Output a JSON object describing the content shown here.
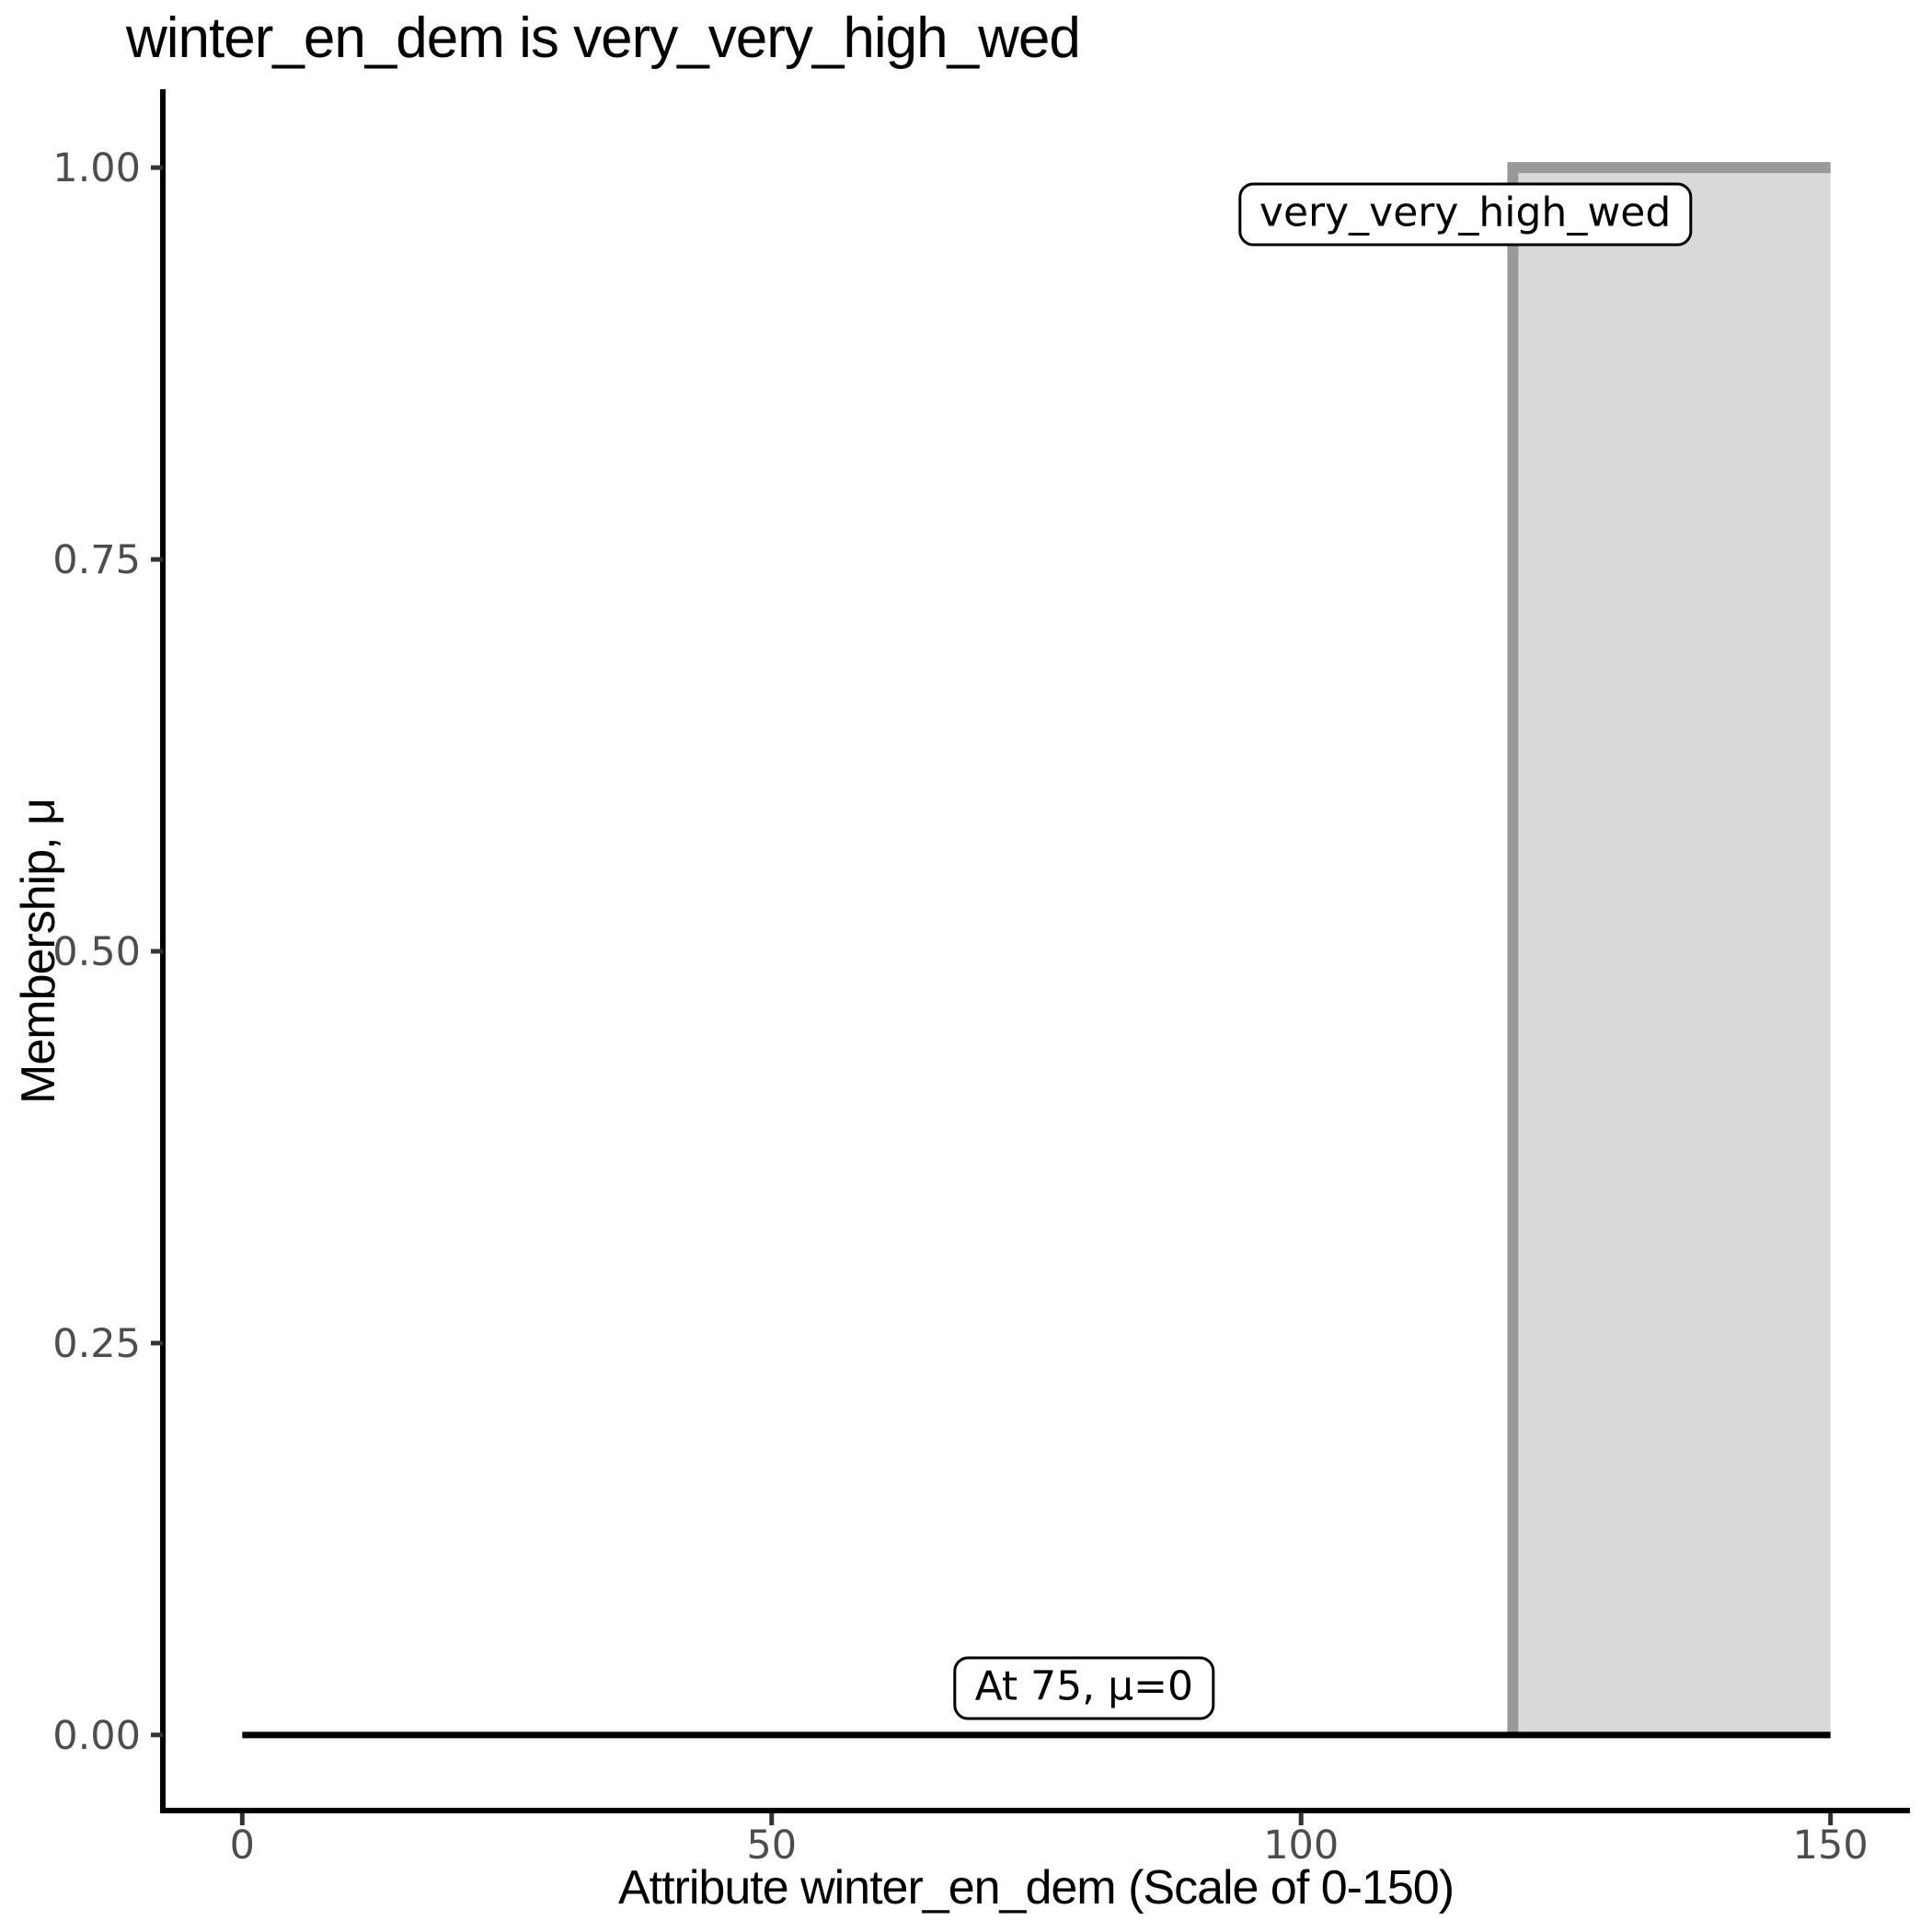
{
  "chart_data": {
    "type": "area",
    "title": "winter_en_dem is very_very_high_wed",
    "xlabel": "Attribute winter_en_dem (Scale of 0-150)",
    "ylabel": "Membership, μ",
    "xlim": [
      0,
      150
    ],
    "ylim": [
      0,
      1
    ],
    "grid": false,
    "legend": "none",
    "x_ticks": [
      {
        "v": 0,
        "label": "0"
      },
      {
        "v": 50,
        "label": "50"
      },
      {
        "v": 100,
        "label": "100"
      },
      {
        "v": 150,
        "label": "150"
      }
    ],
    "y_ticks": [
      {
        "v": 0,
        "label": "0.00"
      },
      {
        "v": 0.25,
        "label": "0.25"
      },
      {
        "v": 0.5,
        "label": "0.50"
      },
      {
        "v": 0.75,
        "label": "0.75"
      },
      {
        "v": 1,
        "label": "1.00"
      }
    ],
    "series": [
      {
        "name": "very_very_high_wed",
        "type": "area",
        "description": "crisp rectangular fuzzy set: mu=1 for 120<=x<=150, mu=0 elsewhere",
        "outline_points": [
          [
            120,
            0
          ],
          [
            120,
            1
          ],
          [
            150,
            1
          ]
        ],
        "fill_polygon": [
          [
            120,
            0
          ],
          [
            120,
            1
          ],
          [
            150,
            1
          ],
          [
            150,
            0
          ]
        ],
        "stroke": "#999999",
        "fill": "#d9d9d9"
      },
      {
        "name": "membership_at_input_line",
        "type": "line",
        "points": [
          [
            0,
            0
          ],
          [
            150,
            0
          ]
        ],
        "stroke": "#000000"
      }
    ],
    "annotations": [
      {
        "text": "very_very_high_wed",
        "x": 115.5,
        "y": 0.97
      },
      {
        "text": "At 75, μ=0",
        "x": 79.5,
        "y": 0.03
      }
    ],
    "colors": {
      "axis_line": "#000000",
      "tick_mark": "#333333",
      "tick_label": "#4d4d4d",
      "set_border": "#999999",
      "set_fill": "#d9d9d9",
      "function_line": "#000000",
      "background": "#ffffff"
    }
  }
}
